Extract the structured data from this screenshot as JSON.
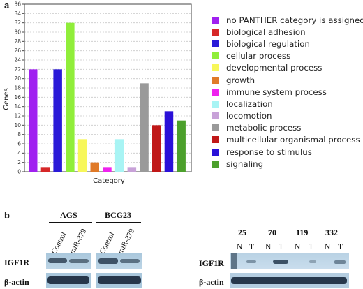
{
  "panel_a_letter": "a",
  "panel_b_letter": "b",
  "chart_data": {
    "type": "bar",
    "title": "",
    "xlabel": "Category",
    "ylabel": "Genes",
    "ylim": [
      0,
      36
    ],
    "yticks": [
      "0",
      "2",
      "4",
      "6",
      "8",
      "10",
      "12",
      "14",
      "16",
      "18",
      "20",
      "22",
      "24",
      "26",
      "28",
      "30",
      "32",
      "34",
      "36"
    ],
    "grid": "horizontal dashed",
    "legend_position": "right",
    "categories": [
      "no PANTHER category is assigned",
      "biological adhesion",
      "biological regulation",
      "cellular process",
      "developmental process",
      "growth",
      "immune system process",
      "localization",
      "locomotion",
      "metabolic process",
      "multicellular organismal process",
      "response to stimulus",
      "signaling"
    ],
    "values": [
      22,
      1,
      22,
      32,
      7,
      2,
      1,
      7,
      1,
      19,
      10,
      13,
      11
    ],
    "colors": [
      "#a020f0",
      "#d62728",
      "#2a1ad8",
      "#90ee3a",
      "#f7f75a",
      "#e07a28",
      "#ee22ee",
      "#a8f4f4",
      "#c8a2d8",
      "#9a9a9a",
      "#c01818",
      "#2a10d8",
      "#4ca02c"
    ]
  },
  "blot_left": {
    "groups": [
      {
        "name": "AGS",
        "lanes": [
          "Control",
          "miR-379"
        ]
      },
      {
        "name": "BCG23",
        "lanes": [
          "Control",
          "miR-379"
        ]
      }
    ],
    "rows": [
      "IGF1R",
      "β-actin"
    ]
  },
  "blot_right": {
    "samples": [
      "25",
      "70",
      "119",
      "332"
    ],
    "lane_pair": [
      "N",
      "T"
    ],
    "rows": [
      "IGF1R",
      "β-actin"
    ]
  }
}
